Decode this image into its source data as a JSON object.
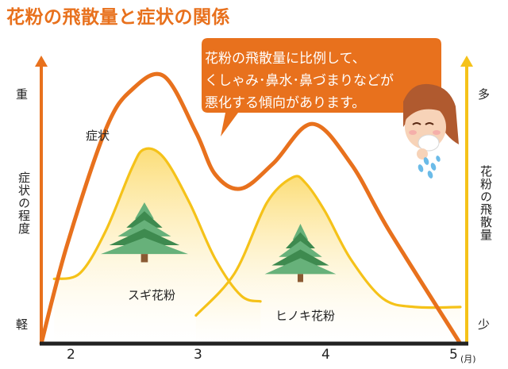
{
  "title": "花粉の飛散量と症状の関係",
  "callout": {
    "lines": [
      "花粉の飛散量に比例して、",
      "くしゃみ･鼻水･鼻づまりなどが",
      "悪化する傾向があります。"
    ]
  },
  "colors": {
    "symptom": "#e8711d",
    "pollen": "#f5c219",
    "glow": "#fde7a6",
    "tree_dark": "#3e8a4f",
    "tree_light": "#67b17a",
    "axis": "#222222",
    "title": "#e8711d"
  },
  "icons": {
    "tree": "cedar-tree-icon",
    "person": "sneezing-person-icon"
  },
  "chart_data": {
    "type": "line",
    "x_ticks": [
      "2",
      "3",
      "4",
      "5"
    ],
    "x_unit": "(月)",
    "left_axis": {
      "label": "症状の程度",
      "top": "重",
      "bottom": "軽"
    },
    "right_axis": {
      "label": "花粉の飛散量",
      "top": "多",
      "bottom": "少"
    },
    "xlim": [
      1.8,
      5.1
    ],
    "ylim": [
      0,
      1
    ],
    "grid": false,
    "series": [
      {
        "name": "症状",
        "x": [
          1.8,
          2.0,
          2.3,
          2.5,
          2.75,
          3.0,
          3.15,
          3.35,
          3.6,
          3.9,
          4.2,
          4.5,
          5.05
        ],
        "y": [
          0,
          0.35,
          0.76,
          0.9,
          0.95,
          0.75,
          0.6,
          0.55,
          0.64,
          0.78,
          0.64,
          0.4,
          0
        ]
      },
      {
        "name": "スギ花粉",
        "x": [
          1.9,
          2.1,
          2.3,
          2.5,
          2.6,
          2.75,
          2.95,
          3.15,
          3.35,
          3.5
        ],
        "y": [
          0.23,
          0.25,
          0.4,
          0.62,
          0.69,
          0.66,
          0.5,
          0.3,
          0.17,
          0.15
        ]
      },
      {
        "name": "ヒノキ花粉",
        "x": [
          3.0,
          3.3,
          3.55,
          3.75,
          3.85,
          4.0,
          4.2,
          4.45,
          4.7,
          5.05
        ],
        "y": [
          0.1,
          0.25,
          0.5,
          0.59,
          0.57,
          0.47,
          0.3,
          0.16,
          0.13,
          0.13
        ]
      }
    ]
  }
}
